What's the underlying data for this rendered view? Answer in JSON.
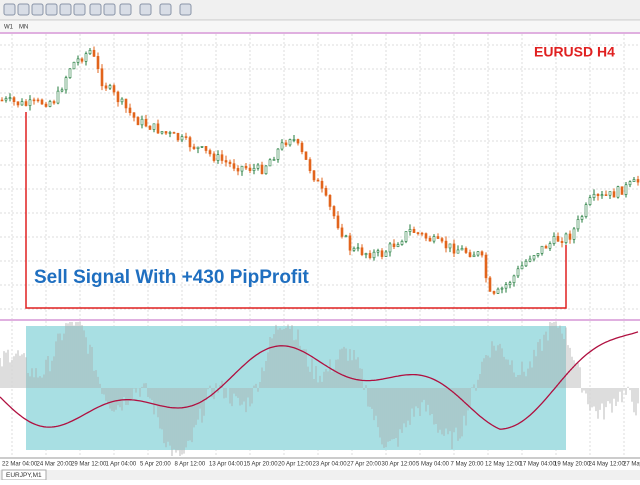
{
  "toolbar": {
    "tabs": [
      "W1",
      "MN"
    ]
  },
  "chart": {
    "symbol_label": "EURUSD H4",
    "annotation": "Sell Signal With +430 PipProfit",
    "time_labels": [
      "22 Mar 04:00",
      "24 Mar 20:00",
      "29 Mar 12:00",
      "1 Apr 04:00",
      "5 Apr 20:00",
      "8 Apr 12:00",
      "13 Apr 04:00",
      "15 Apr 20:00",
      "20 Apr 12:00",
      "23 Apr 04:00",
      "27 Apr 20:00",
      "30 Apr 12:00",
      "5 May 04:00",
      "7 May 20:00",
      "12 May 12:00",
      "17 May 04:00",
      "19 May 20:00",
      "24 May 12:00",
      "27 May 04:00"
    ]
  },
  "footer": {
    "tab": "EURJPY,M1"
  }
}
